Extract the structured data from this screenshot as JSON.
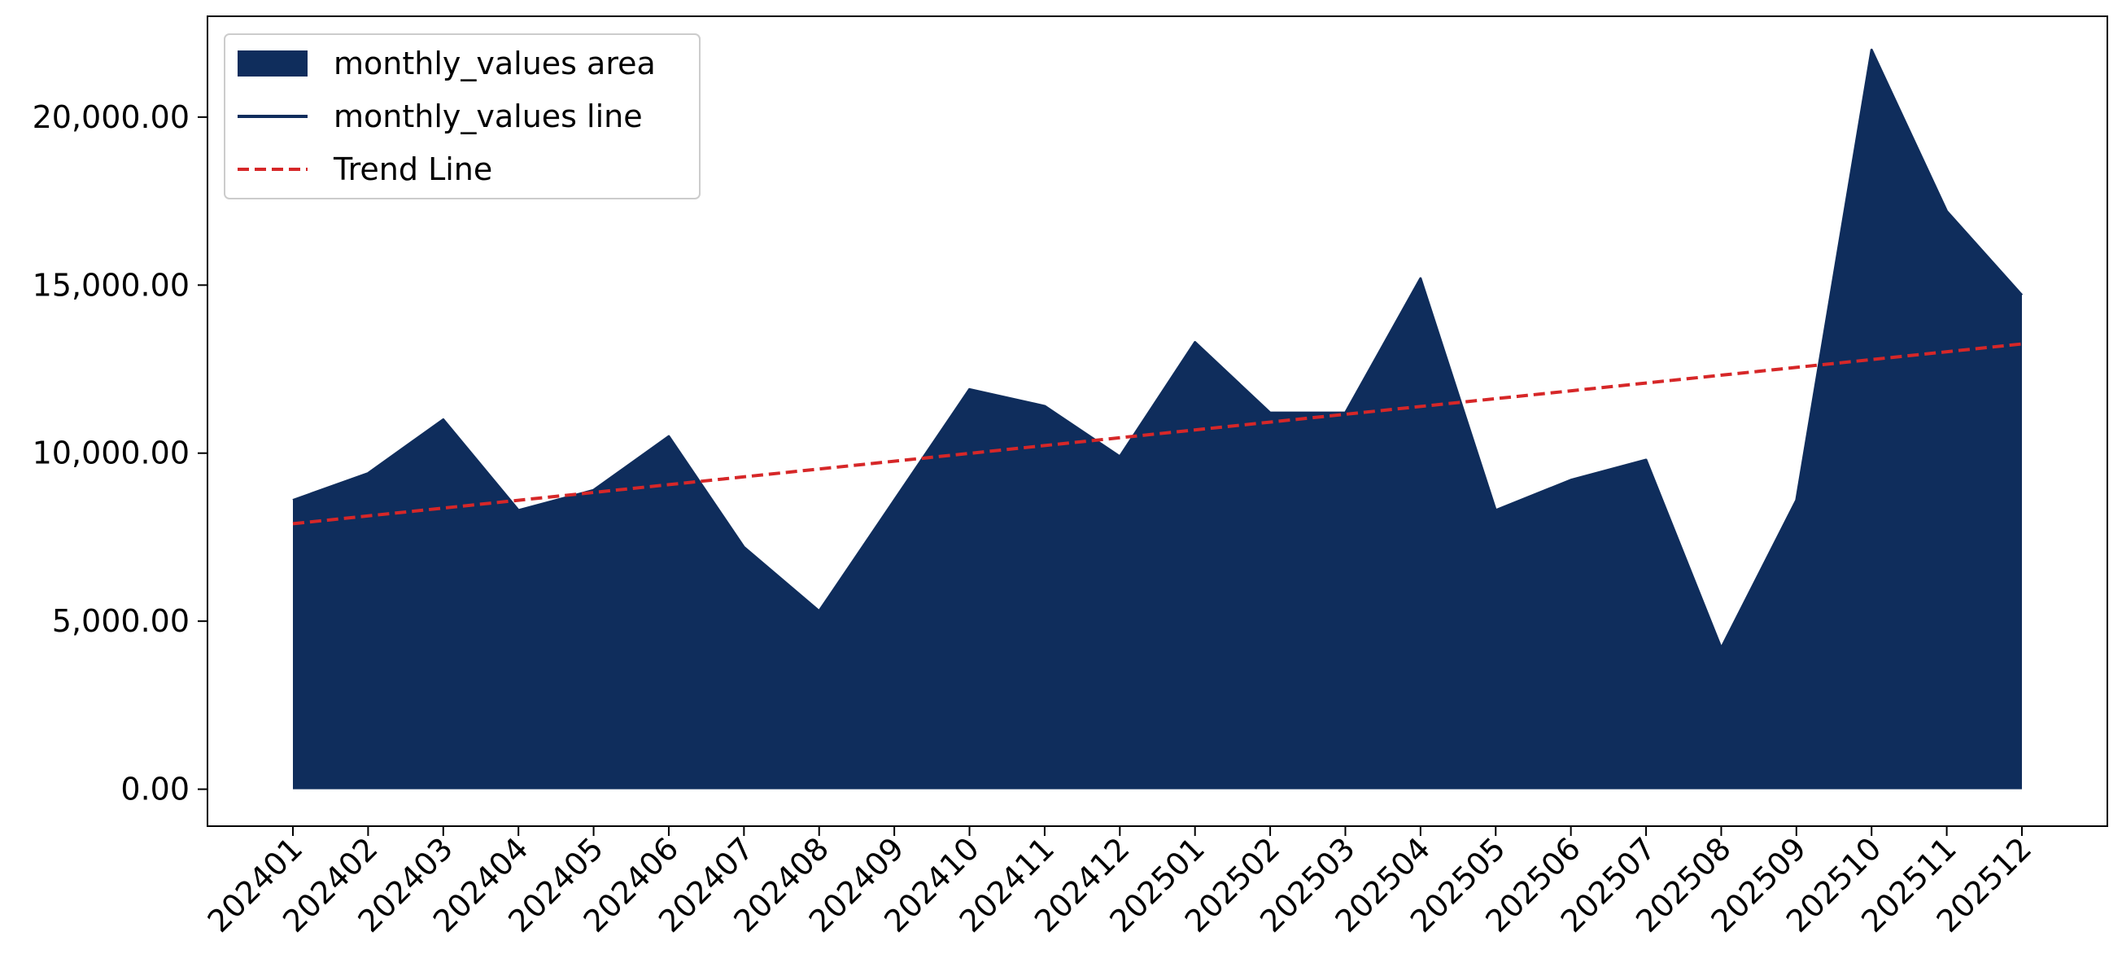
{
  "chart_data": {
    "type": "area",
    "title": "",
    "xlabel": "",
    "ylabel": "",
    "categories": [
      "202401",
      "202402",
      "202403",
      "202404",
      "202405",
      "202406",
      "202407",
      "202408",
      "202409",
      "202410",
      "202411",
      "202412",
      "202501",
      "202502",
      "202503",
      "202504",
      "202505",
      "202506",
      "202507",
      "202508",
      "202509",
      "202510",
      "202511",
      "202512"
    ],
    "series": [
      {
        "name": "monthly_values area",
        "kind": "area",
        "color": "#0f2d5c",
        "values": [
          8600,
          9400,
          11000,
          8300,
          8900,
          10500,
          7200,
          5300,
          8600,
          11900,
          11400,
          9900,
          13300,
          11200,
          11200,
          15200,
          8300,
          9200,
          9800,
          4200,
          8600,
          22000,
          17200,
          14700
        ]
      },
      {
        "name": "monthly_values line",
        "kind": "line",
        "color": "#0f2d5c",
        "values": [
          8600,
          9400,
          11000,
          8300,
          8900,
          10500,
          7200,
          5300,
          8600,
          11900,
          11400,
          9900,
          13300,
          11200,
          11200,
          15200,
          8300,
          9200,
          9800,
          4200,
          8600,
          22000,
          17200,
          14700
        ]
      },
      {
        "name": "Trend Line",
        "kind": "line",
        "style": "dashed",
        "color": "#d62728",
        "start": 7900,
        "end": 13250
      }
    ],
    "yticks": [
      0,
      5000,
      10000,
      15000,
      20000
    ],
    "ytick_labels": [
      "0.00",
      "5,000.00",
      "10,000.00",
      "15,000.00",
      "20,000.00"
    ],
    "ylim": [
      -1100,
      23000
    ],
    "grid": false,
    "legend": {
      "position": "top-left",
      "entries": [
        "monthly_values area",
        "monthly_values line",
        "Trend Line"
      ]
    }
  }
}
